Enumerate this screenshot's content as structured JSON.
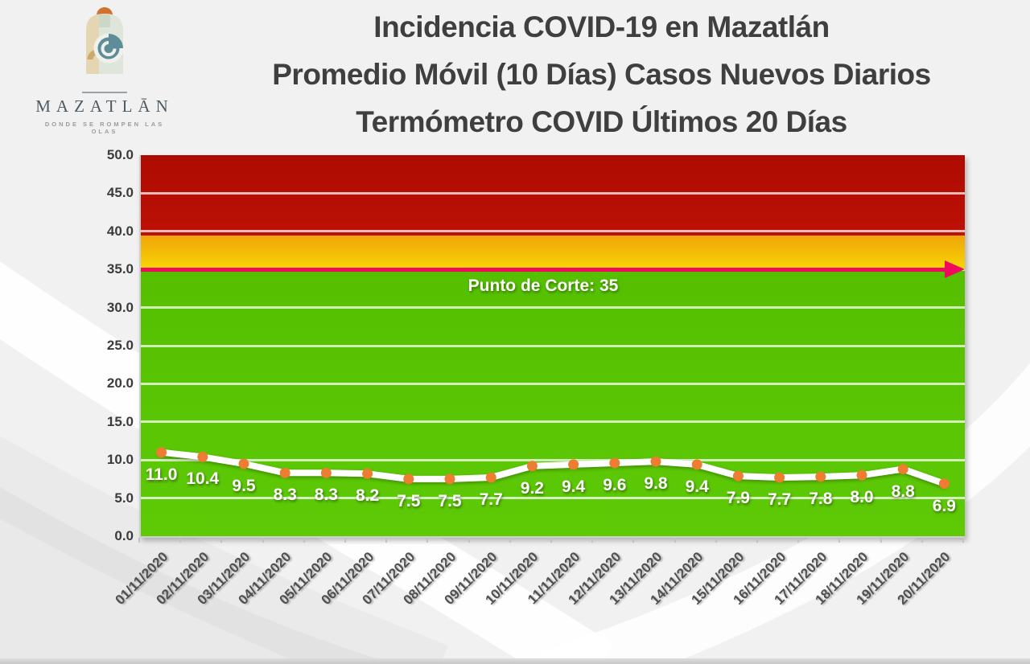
{
  "logo": {
    "brand": "MAZATLĀN",
    "tagline": "DONDE SE ROMPEN LAS OLAS",
    "icon": "seashell-sun-logo-icon"
  },
  "header": {
    "title_lines": [
      "Incidencia COVID-19 en Mazatlán",
      "Promedio Móvil (10 Días) Casos Nuevos Diarios",
      "Termómetro COVID Últimos 20 Días"
    ]
  },
  "chart_data": {
    "type": "line",
    "title": "Incidencia COVID-19 en Mazatlán — Promedio Móvil (10 Días) Casos Nuevos Diarios — Termómetro COVID Últimos 20 Días",
    "x": [
      "01/11/2020",
      "02/11/2020",
      "03/11/2020",
      "04/11/2020",
      "05/11/2020",
      "06/11/2020",
      "07/11/2020",
      "08/11/2020",
      "09/11/2020",
      "10/11/2020",
      "11/11/2020",
      "12/11/2020",
      "13/11/2020",
      "14/11/2020",
      "15/11/2020",
      "16/11/2020",
      "17/11/2020",
      "18/11/2020",
      "19/11/2020",
      "20/11/2020"
    ],
    "series": [
      {
        "name": "Promedio móvil (10 días) de casos nuevos diarios",
        "values": [
          11.0,
          10.4,
          9.5,
          8.3,
          8.3,
          8.2,
          7.5,
          7.5,
          7.7,
          9.2,
          9.4,
          9.6,
          9.8,
          9.4,
          7.9,
          7.7,
          7.8,
          8.0,
          8.8,
          6.9
        ]
      }
    ],
    "point_labels": [
      "11.0",
      "10.4",
      "9.5",
      "8.3",
      "8.3",
      "8.2",
      "7.5",
      "7.5",
      "7.7",
      "9.2",
      "9.4",
      "9.6",
      "9.8",
      "9.4",
      "7.9",
      "7.7",
      "7.8",
      "8.0",
      "8.8",
      "6.9"
    ],
    "ylim": [
      0,
      50
    ],
    "yticks": [
      {
        "v": 0,
        "label": "0.0"
      },
      {
        "v": 5,
        "label": "5.0"
      },
      {
        "v": 10,
        "label": "10.0"
      },
      {
        "v": 15,
        "label": "15.0"
      },
      {
        "v": 20,
        "label": "20.0"
      },
      {
        "v": 25,
        "label": "25.0"
      },
      {
        "v": 30,
        "label": "30.0"
      },
      {
        "v": 35,
        "label": "35.0"
      },
      {
        "v": 40,
        "label": "40.0"
      },
      {
        "v": 45,
        "label": "45.0"
      },
      {
        "v": 50,
        "label": "50.0"
      }
    ],
    "grid": true,
    "legend_position": "none",
    "bands": [
      {
        "name": "green-safe-zone",
        "from": 0,
        "to": 35,
        "color_top": "#55BF00",
        "color_bottom": "#5ECA06"
      },
      {
        "name": "yellow-warning-zone",
        "from": 35,
        "to": 39.5,
        "color_top": "#EFA509",
        "color_bottom": "#F8D506"
      },
      {
        "name": "red-danger-zone",
        "from": 39.5,
        "to": 50,
        "color_top": "#AE0B02",
        "color_bottom": "#BD1105"
      }
    ],
    "cutoff": {
      "value": 35,
      "label": "Punto de Corte: 35",
      "color": "#F00A5F"
    },
    "colors": {
      "line": "#FFFFFF",
      "point": "#ED7D31",
      "gridline": "rgba(255,255,255,0.72)",
      "title_text": "#3F3F3F",
      "axis_text": "#4F4F4F"
    }
  }
}
